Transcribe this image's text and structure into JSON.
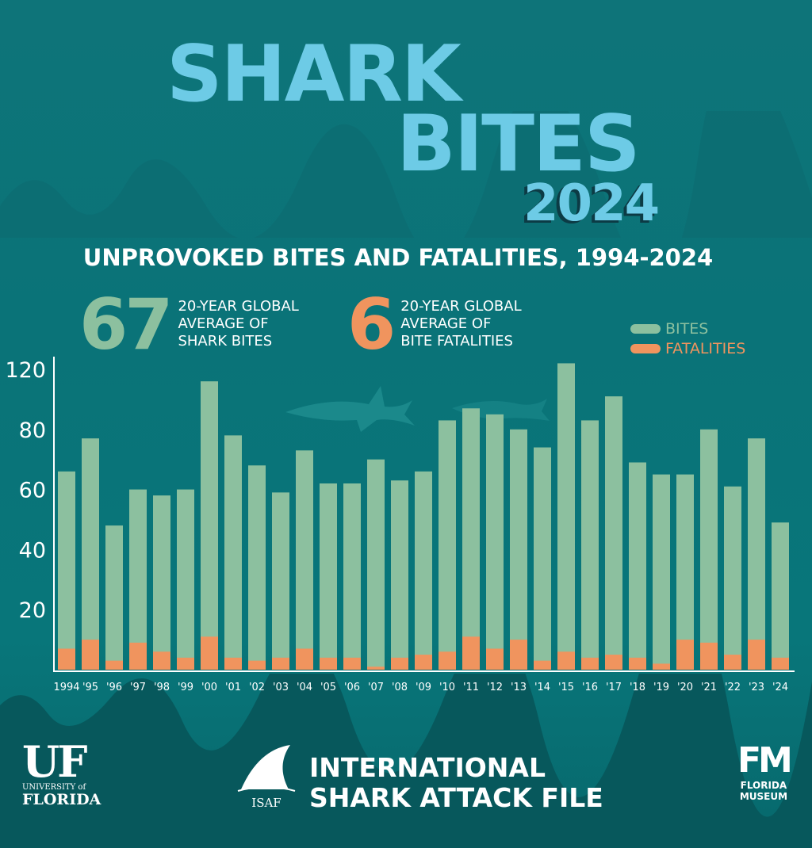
{
  "logo": {
    "line1": "SHARK",
    "line2": "BITES",
    "line3": "2024"
  },
  "subtitle": "UNPROVOKED BITES AND FATALITIES, 1994-2024",
  "stats": [
    {
      "value": "67",
      "text": [
        "20-YEAR GLOBAL",
        "AVERAGE OF",
        "SHARK BITES"
      ],
      "color": "#8cc09f"
    },
    {
      "value": "6",
      "text": [
        "20-YEAR GLOBAL",
        "AVERAGE OF",
        "BITE FATALITIES"
      ],
      "color": "#f0945e"
    }
  ],
  "chart_data": {
    "type": "bar",
    "stacked": "overlay",
    "categories": [
      "1994",
      "'95",
      "'96",
      "'97",
      "'98",
      "'99",
      "'00",
      "'01",
      "'02",
      "'03",
      "'04",
      "'05",
      "'06",
      "'07",
      "'08",
      "'09",
      "'10",
      "'11",
      "'12",
      "'13",
      "'14",
      "'15",
      "'16",
      "'17",
      "'18",
      "'19",
      "'20",
      "'21",
      "'22",
      "'23",
      "'24"
    ],
    "series": [
      {
        "name": "BITES",
        "color": "#8cc09f",
        "values": [
          66,
          77,
          48,
          60,
          58,
          60,
          96,
          78,
          68,
          59,
          73,
          62,
          62,
          70,
          63,
          66,
          83,
          87,
          85,
          80,
          74,
          102,
          83,
          91,
          69,
          65,
          65,
          80,
          61,
          77,
          49
        ]
      },
      {
        "name": "FATALITIES",
        "color": "#f0945e",
        "values": [
          7,
          10,
          3,
          9,
          6,
          4,
          11,
          4,
          3,
          4,
          7,
          4,
          4,
          1,
          4,
          5,
          6,
          11,
          7,
          10,
          3,
          6,
          4,
          5,
          4,
          2,
          10,
          9,
          5,
          10,
          4
        ]
      }
    ],
    "ytick_labels": [
      "20",
      "40",
      "60",
      "80",
      "120"
    ],
    "ylim": [
      0,
      105
    ],
    "grid": false,
    "legend": "top-right"
  },
  "footer": {
    "uf": {
      "mark": "UF",
      "line1": "UNIVERSITY of",
      "line2": "FLORIDA"
    },
    "isaf": {
      "abbr": "ISAF",
      "line1": "INTERNATIONAL",
      "line2": "SHARK ATTACK FILE"
    },
    "museum": {
      "mark": "FM",
      "line1": "FLORIDA",
      "line2": "MUSEUM"
    }
  }
}
